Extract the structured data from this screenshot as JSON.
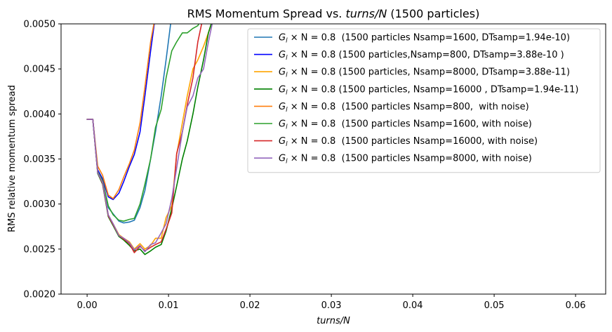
{
  "chart_data": {
    "type": "line",
    "title": "RMS Momentum Spread vs. turns/N (1500 particles)",
    "title_plain": "RMS Momentum Spread vs. ",
    "title_italic": "turns/N",
    "title_suffix": " (1500 particles)",
    "xlabel": "turns/N",
    "ylabel": "RMS relative momentum spread",
    "xlim": [
      -0.0032,
      0.0637
    ],
    "ylim": [
      0.002,
      0.005
    ],
    "xticks": [
      0.0,
      0.01,
      0.02,
      0.03,
      0.04,
      0.05,
      0.06
    ],
    "xtick_labels": [
      "0.00",
      "0.01",
      "0.02",
      "0.03",
      "0.04",
      "0.05",
      "0.06"
    ],
    "yticks": [
      0.002,
      0.0025,
      0.003,
      0.0035,
      0.004,
      0.0045,
      0.005
    ],
    "ytick_labels": [
      "0.0020",
      "0.0025",
      "0.0030",
      "0.0035",
      "0.0040",
      "0.0045",
      "0.0050"
    ],
    "grid": false,
    "legend_position": "top-right",
    "series": [
      {
        "name": "G_l × N = 0.8  (1500 particles Nsamp=1600, DTsamp=1.94e-10)",
        "label_prefix": "G",
        "label_sub": "l",
        "label_rest": " × N = 0.8  (1500 particles Nsamp=1600, DTsamp=1.94e-10)",
        "color": "#1f77b4",
        "x": [
          0.0,
          0.0007,
          0.0013,
          0.0019,
          0.0026,
          0.0032,
          0.0039,
          0.0045,
          0.0052,
          0.0058,
          0.0065,
          0.0071,
          0.0078,
          0.0084,
          0.0091,
          0.0097,
          0.0104
        ],
        "y": [
          0.00394,
          0.00394,
          0.00335,
          0.00325,
          0.00296,
          0.00289,
          0.00281,
          0.00279,
          0.0028,
          0.00282,
          0.00296,
          0.00315,
          0.0035,
          0.0038,
          0.0042,
          0.0046,
          0.0051
        ]
      },
      {
        "name": "G_l × N = 0.8 (1500 particles,Nsamp=800, DTsamp=3.88e-10 )",
        "label_prefix": "G",
        "label_sub": "l",
        "label_rest": " × N = 0.8 (1500 particles,Nsamp=800, DTsamp=3.88e-10 )",
        "color": "#0000ff",
        "x": [
          0.0,
          0.0007,
          0.0013,
          0.0019,
          0.0026,
          0.0032,
          0.0039,
          0.0045,
          0.0052,
          0.0058,
          0.0065,
          0.0071,
          0.0078,
          0.0084
        ],
        "y": [
          0.00394,
          0.00394,
          0.00338,
          0.00328,
          0.00308,
          0.00305,
          0.00312,
          0.00325,
          0.00342,
          0.00355,
          0.0038,
          0.0042,
          0.0047,
          0.0051
        ]
      },
      {
        "name": "G_l × N = 0.8 (1500 particles, Nsamp=8000, DTsamp=3.88e-11)",
        "label_prefix": "G",
        "label_sub": "l",
        "label_rest": " × N = 0.8 (1500 particles, Nsamp=8000, DTsamp=3.88e-11)",
        "color": "#ffa500",
        "x": [
          0.0,
          0.0007,
          0.0013,
          0.0019,
          0.0026,
          0.0032,
          0.0039,
          0.0045,
          0.0052,
          0.0058,
          0.0065,
          0.0071,
          0.0078,
          0.0084,
          0.0091,
          0.0097,
          0.0104,
          0.011,
          0.0117,
          0.0123,
          0.013,
          0.0136,
          0.0143,
          0.0149,
          0.0156
        ],
        "y": [
          0.00394,
          0.00394,
          0.00336,
          0.00324,
          0.00288,
          0.00278,
          0.00266,
          0.00262,
          0.00258,
          0.0025,
          0.00256,
          0.0025,
          0.00254,
          0.00262,
          0.00262,
          0.00285,
          0.00298,
          0.00355,
          0.0039,
          0.0042,
          0.0045,
          0.0046,
          0.00475,
          0.0049,
          0.0051
        ]
      },
      {
        "name": "G_l × N = 0.8 (1500 particles, Nsamp=16000 , DTsamp=1.94e-11)",
        "label_prefix": "G",
        "label_sub": "l",
        "label_rest": " × N = 0.8 (1500 particles, Nsamp=16000 , DTsamp=1.94e-11)",
        "color": "#008000",
        "x": [
          0.0,
          0.0007,
          0.0013,
          0.0019,
          0.0026,
          0.0032,
          0.0039,
          0.0045,
          0.0052,
          0.0058,
          0.0065,
          0.0071,
          0.0078,
          0.0084,
          0.0091,
          0.0097,
          0.0104,
          0.011,
          0.0117,
          0.0123,
          0.013,
          0.0136,
          0.0143,
          0.0149,
          0.0156
        ],
        "y": [
          0.00394,
          0.00394,
          0.00334,
          0.00322,
          0.00286,
          0.00276,
          0.00264,
          0.0026,
          0.00254,
          0.00248,
          0.0025,
          0.00244,
          0.00248,
          0.00252,
          0.00255,
          0.0027,
          0.00295,
          0.0032,
          0.0035,
          0.0037,
          0.004,
          0.0043,
          0.0046,
          0.0049,
          0.0051
        ]
      },
      {
        "name": "G_l × N = 0.8  (1500 particles Nsamp=800,  with noise)",
        "label_prefix": "G",
        "label_sub": "l",
        "label_rest": " × N = 0.8  (1500 particles Nsamp=800,  with noise)",
        "color": "#ff7f0e",
        "x": [
          0.0,
          0.0007,
          0.0013,
          0.0019,
          0.0026,
          0.0032,
          0.0039,
          0.0045,
          0.0052,
          0.0058,
          0.0065,
          0.0071,
          0.0078,
          0.0084
        ],
        "y": [
          0.00394,
          0.00394,
          0.00342,
          0.00332,
          0.0031,
          0.00306,
          0.00316,
          0.0033,
          0.00345,
          0.0036,
          0.0039,
          0.0043,
          0.0048,
          0.0051
        ]
      },
      {
        "name": "G_l × N = 0.8  (1500 particles Nsamp=1600, with noise)",
        "label_prefix": "G",
        "label_sub": "l",
        "label_rest": " × N = 0.8  (1500 particles Nsamp=1600, with noise)",
        "color": "#2ca02c",
        "x": [
          0.0,
          0.0007,
          0.0013,
          0.0019,
          0.0026,
          0.0032,
          0.0039,
          0.0045,
          0.0052,
          0.0058,
          0.0065,
          0.0071,
          0.0078,
          0.0084,
          0.0091,
          0.0097,
          0.0104,
          0.011,
          0.0117,
          0.0123,
          0.013,
          0.0136,
          0.0143
        ],
        "y": [
          0.00394,
          0.00394,
          0.00336,
          0.00326,
          0.00298,
          0.00288,
          0.00282,
          0.00281,
          0.00283,
          0.00284,
          0.003,
          0.00322,
          0.0035,
          0.00385,
          0.00405,
          0.0044,
          0.0047,
          0.0048,
          0.0049,
          0.0049,
          0.00495,
          0.00498,
          0.0051
        ]
      },
      {
        "name": "G_l × N = 0.8  (1500 particles Nsamp=16000, with noise)",
        "label_prefix": "G",
        "label_sub": "l",
        "label_rest": " × N = 0.8  (1500 particles Nsamp=16000, with noise)",
        "color": "#d62728",
        "x": [
          0.0,
          0.0007,
          0.0013,
          0.0019,
          0.0026,
          0.0032,
          0.0039,
          0.0045,
          0.0052,
          0.0058,
          0.0065,
          0.0071,
          0.0078,
          0.0084,
          0.0091,
          0.0097,
          0.0104,
          0.011,
          0.0117,
          0.0123,
          0.013,
          0.0136,
          0.0143
        ],
        "y": [
          0.00394,
          0.00394,
          0.00335,
          0.00323,
          0.00287,
          0.00277,
          0.00265,
          0.00261,
          0.00256,
          0.00246,
          0.00253,
          0.00248,
          0.00252,
          0.00255,
          0.00258,
          0.00272,
          0.0029,
          0.00356,
          0.0038,
          0.0041,
          0.0044,
          0.0048,
          0.0051
        ]
      },
      {
        "name": "G_l × N = 0.8  (1500 particles Nsamp=8000, with noise)",
        "label_prefix": "G",
        "label_sub": "l",
        "label_rest": " × N = 0.8  (1500 particles Nsamp=8000, with noise)",
        "color": "#9467bd",
        "x": [
          0.0,
          0.0007,
          0.0013,
          0.0019,
          0.0026,
          0.0032,
          0.0039,
          0.0045,
          0.0052,
          0.0058,
          0.0065,
          0.0071,
          0.0078,
          0.0084,
          0.0091,
          0.0097,
          0.0104,
          0.011,
          0.0117,
          0.0123,
          0.013,
          0.0136,
          0.0143,
          0.0149,
          0.0156
        ],
        "y": [
          0.00394,
          0.00394,
          0.00335,
          0.00324,
          0.00288,
          0.00278,
          0.00265,
          0.00262,
          0.00257,
          0.00249,
          0.00254,
          0.00247,
          0.00255,
          0.00257,
          0.00268,
          0.00278,
          0.00306,
          0.0034,
          0.0038,
          0.00408,
          0.0042,
          0.0044,
          0.0045,
          0.0048,
          0.0051
        ]
      }
    ]
  }
}
